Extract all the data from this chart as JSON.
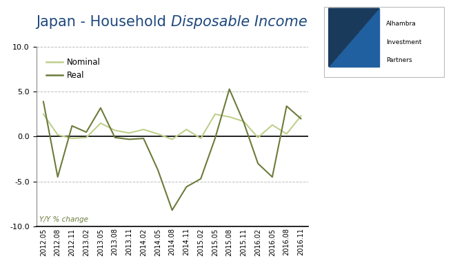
{
  "title_plain": "Japan - Household ",
  "title_italic": "Disposable Income",
  "title_fontsize": 15,
  "title_color": "#1F497D",
  "background_color": "#FFFFFF",
  "plot_bg_color": "#FFFFFF",
  "grid_color": "#BBBBBB",
  "ylabel_text": "Y/Y % change",
  "ylim": [
    -10.0,
    10.0
  ],
  "yticks": [
    -10.0,
    -5.0,
    0.0,
    5.0,
    10.0
  ],
  "nominal_color": "#BECF8B",
  "real_color": "#6B7B3A",
  "labels": [
    "2012.05",
    "2012.08",
    "2012.11",
    "2013.02",
    "2013.05",
    "2013.08",
    "2013.11",
    "2014.02",
    "2014.05",
    "2014.08",
    "2014.11",
    "2015.02",
    "2015.05",
    "2015.08",
    "2015.11",
    "2016.02",
    "2016.05",
    "2016.08",
    "2016.11"
  ],
  "nominal": [
    2.5,
    0.2,
    -0.2,
    -0.1,
    1.5,
    0.7,
    0.4,
    0.8,
    0.3,
    -0.3,
    0.8,
    -0.2,
    2.5,
    2.2,
    1.7,
    -0.1,
    1.3,
    0.3,
    2.3
  ],
  "real": [
    3.9,
    -4.5,
    1.2,
    0.5,
    3.2,
    -0.1,
    -0.3,
    -0.2,
    -3.7,
    -8.2,
    -5.6,
    -4.7,
    -0.2,
    5.3,
    1.6,
    -3.0,
    -4.5,
    3.4,
    2.0
  ],
  "logo_box_color": "#DDDDDD",
  "logo_triangle_dark": "#1A3A5C",
  "logo_triangle_light": "#2060A0"
}
